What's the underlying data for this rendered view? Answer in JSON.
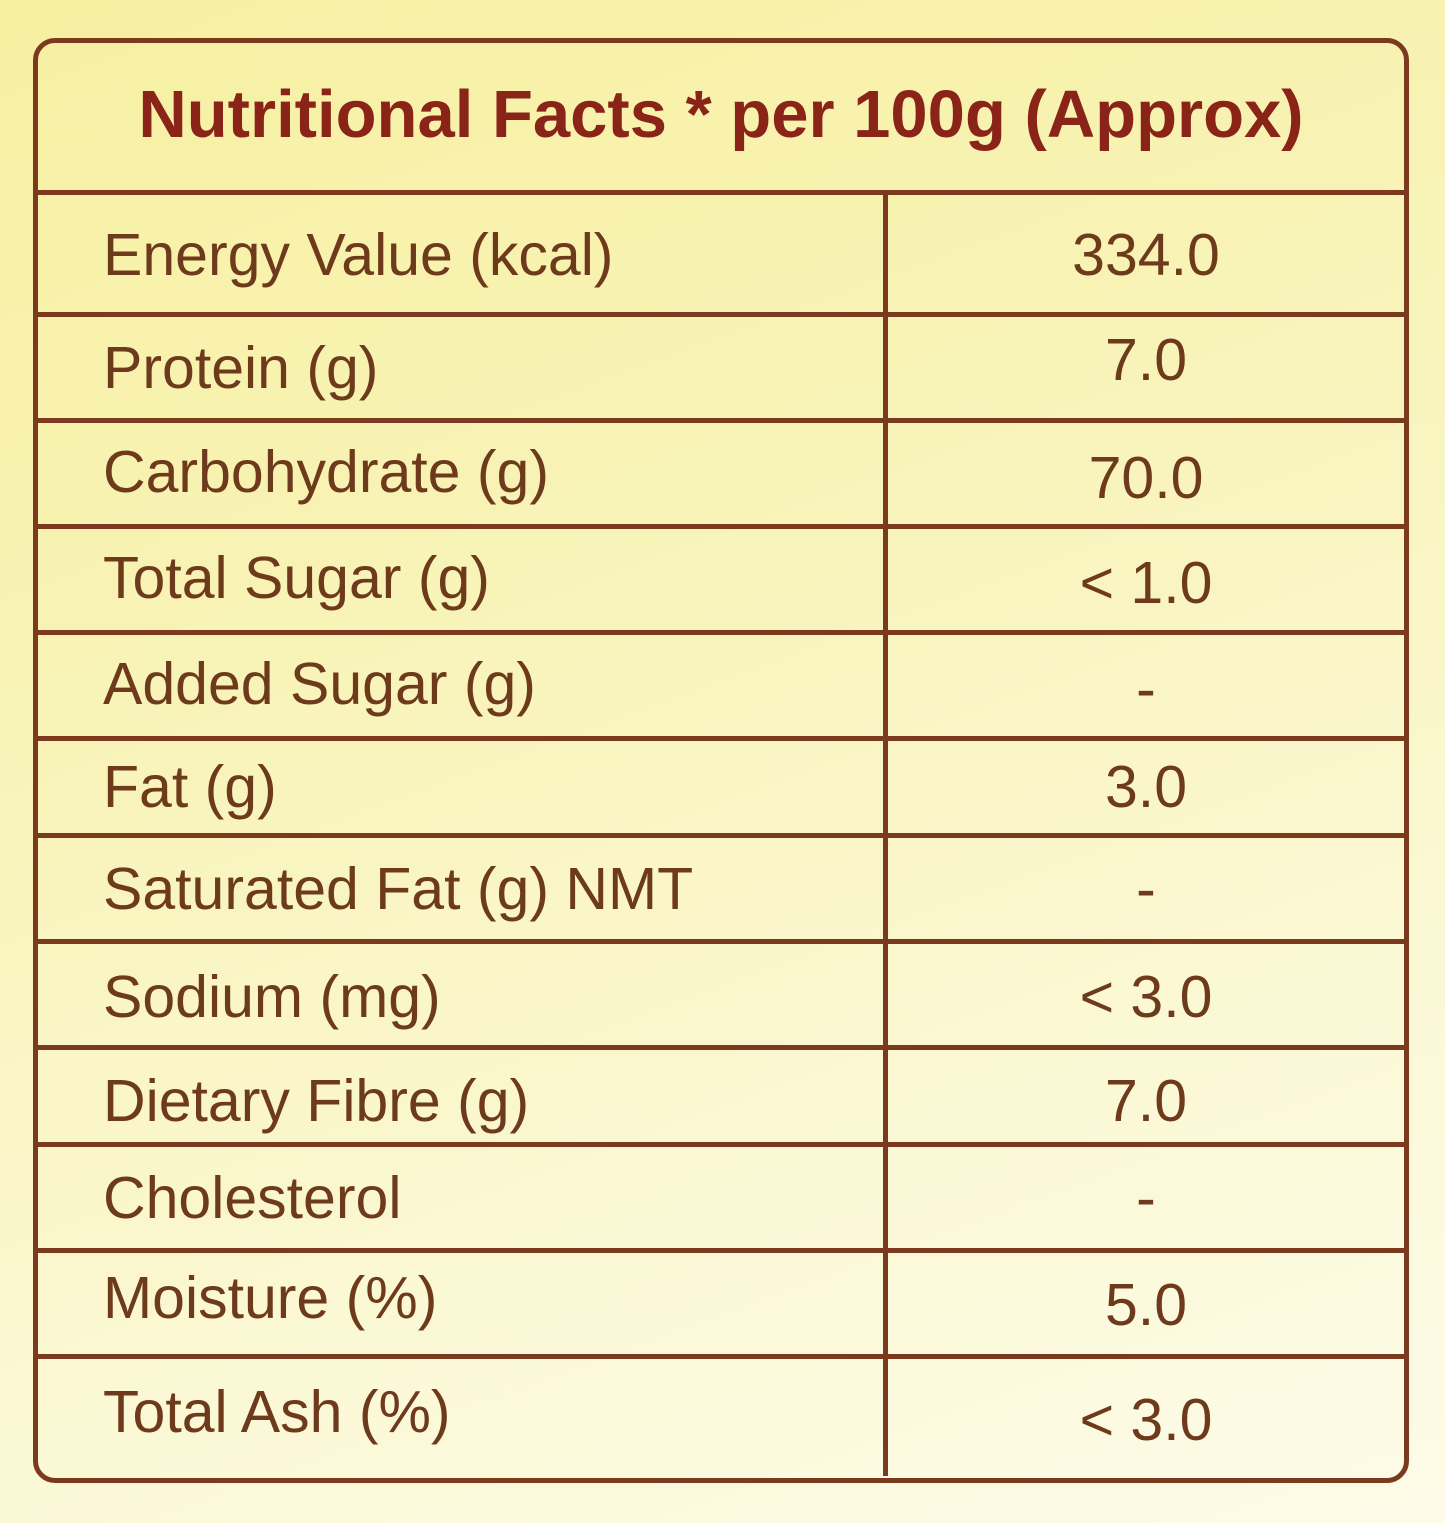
{
  "title": "Nutritional Facts * per 100g (Approx)",
  "rows": [
    {
      "label": "Energy Value (kcal)",
      "value": "334.0"
    },
    {
      "label": "Protein (g)",
      "value": "7.0"
    },
    {
      "label": "Carbohydrate (g)",
      "value": "70.0"
    },
    {
      "label": "Total Sugar (g)",
      "value": "< 1.0"
    },
    {
      "label": "Added Sugar (g)",
      "value": "-"
    },
    {
      "label": "Fat (g)",
      "value": "3.0"
    },
    {
      "label": "Saturated Fat (g) NMT",
      "value": "-"
    },
    {
      "label": "Sodium (mg)",
      "value": "< 3.0"
    },
    {
      "label": "Dietary Fibre (g)",
      "value": "7.0"
    },
    {
      "label": "Cholesterol",
      "value": "-"
    },
    {
      "label": "Moisture (%)",
      "value": "5.0"
    },
    {
      "label": "Total Ash (%)",
      "value": "< 3.0"
    }
  ],
  "colors": {
    "border": "#7b3a1d",
    "title": "#8a2418",
    "text": "#6e3a1c"
  }
}
